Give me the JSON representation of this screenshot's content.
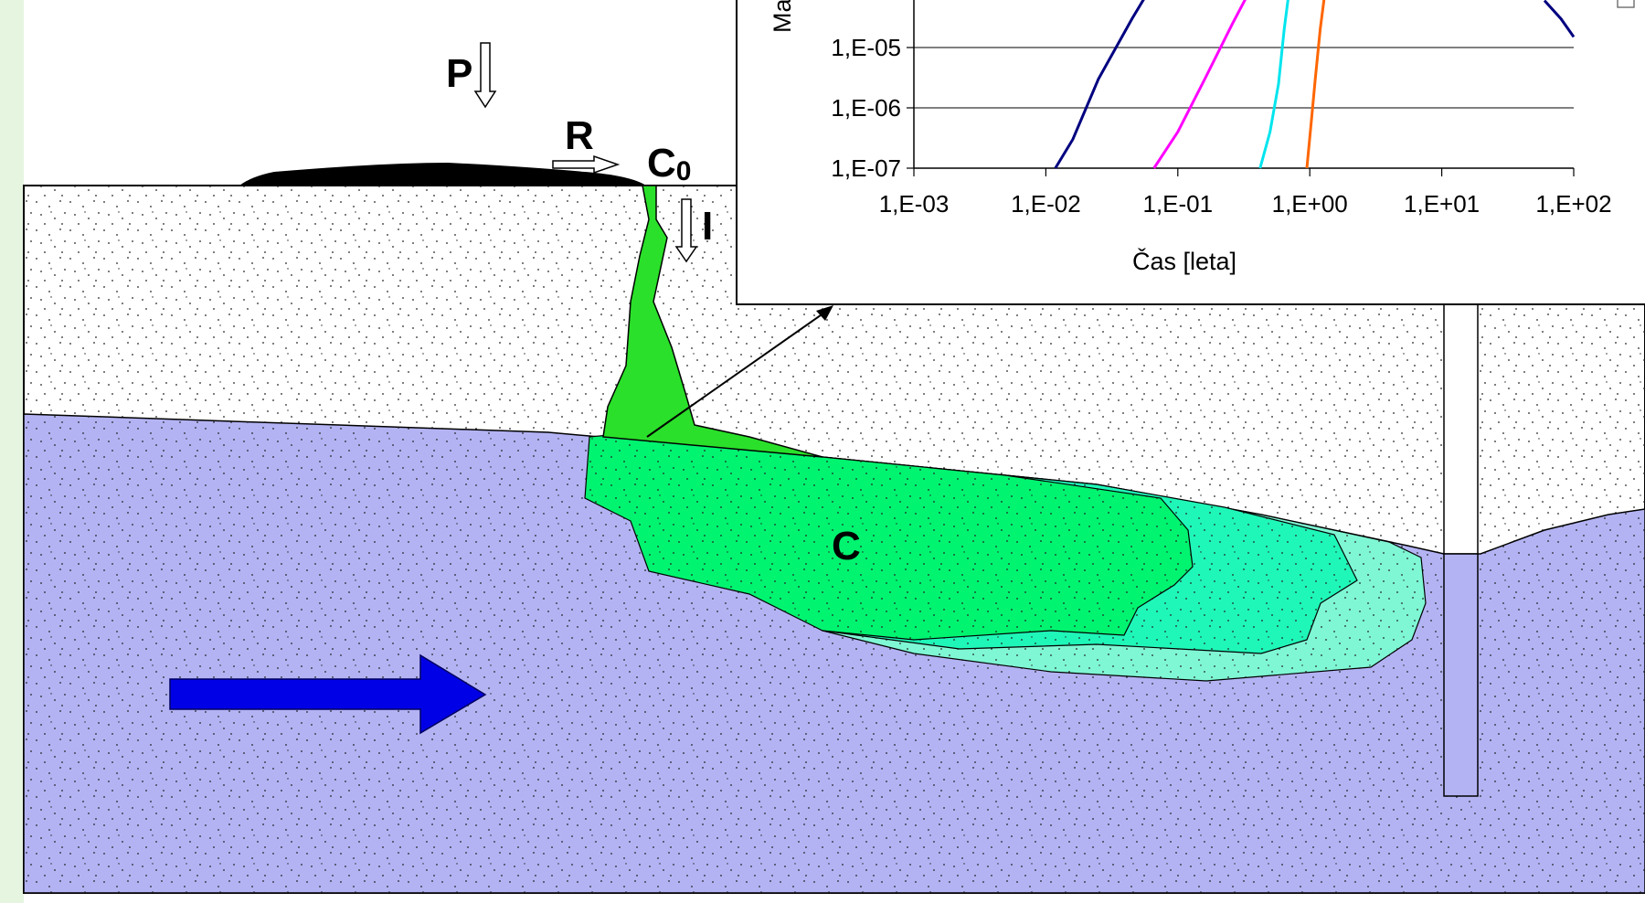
{
  "diagram": {
    "labels": {
      "precipitation": "P",
      "runoff": "R",
      "source_concentration": "C",
      "source_concentration_sub": "0",
      "infiltration": "I",
      "plume_concentration": "C"
    },
    "colors": {
      "vadose_zone": "#ffffff",
      "aquifer": "#b3b3f4",
      "waste_pile": "#000000",
      "plume_core": "#00f470",
      "plume_mid": "#1ff7b8",
      "plume_outer": "#7ff7d4",
      "seepage_column": "#2ae02a",
      "flow_arrow": "#0000e6",
      "background_tint": "#e6f5e0"
    }
  },
  "chart_data": {
    "type": "line",
    "scale": {
      "x": "log",
      "y": "log"
    },
    "xlabel": "Čas [leta]",
    "ylabel_visible": "Ma",
    "xlim": [
      0.001,
      100
    ],
    "ylim": [
      1e-07,
      0.0001
    ],
    "x_ticks": [
      "1,E-03",
      "1,E-02",
      "1,E-01",
      "1,E+00",
      "1,E+01",
      "1,E+02"
    ],
    "y_ticks": [
      "1,E-05",
      "1,E-06",
      "1,E-07"
    ],
    "grid": {
      "horizontal": true,
      "vertical": false
    },
    "series": [
      {
        "color": "#000080",
        "points": [
          [
            0.0118,
            1e-07
          ],
          [
            0.016,
            3e-07
          ],
          [
            0.025,
            3e-06
          ],
          [
            0.045,
            3e-05
          ],
          [
            0.07,
            0.00015
          ]
        ]
      },
      {
        "color": "#ff00ff",
        "points": [
          [
            0.066,
            1e-07
          ],
          [
            0.1,
            4e-07
          ],
          [
            0.16,
            3e-06
          ],
          [
            0.26,
            2.5e-05
          ],
          [
            0.4,
            0.00015
          ]
        ]
      },
      {
        "color": "#00e5ee",
        "points": [
          [
            0.42,
            1e-07
          ],
          [
            0.5,
            4e-07
          ],
          [
            0.58,
            2.5e-06
          ],
          [
            0.64,
            2e-05
          ],
          [
            0.72,
            0.00015
          ]
        ]
      },
      {
        "color": "#ff6600",
        "points": [
          [
            0.95,
            1e-07
          ],
          [
            1.02,
            5e-07
          ],
          [
            1.1,
            3e-06
          ],
          [
            1.2,
            2e-05
          ],
          [
            1.35,
            0.00015
          ]
        ]
      },
      {
        "color": "#000080",
        "points": [
          [
            60,
            6e-05
          ],
          [
            80,
            3e-05
          ],
          [
            100,
            1.5e-05
          ]
        ]
      }
    ]
  }
}
